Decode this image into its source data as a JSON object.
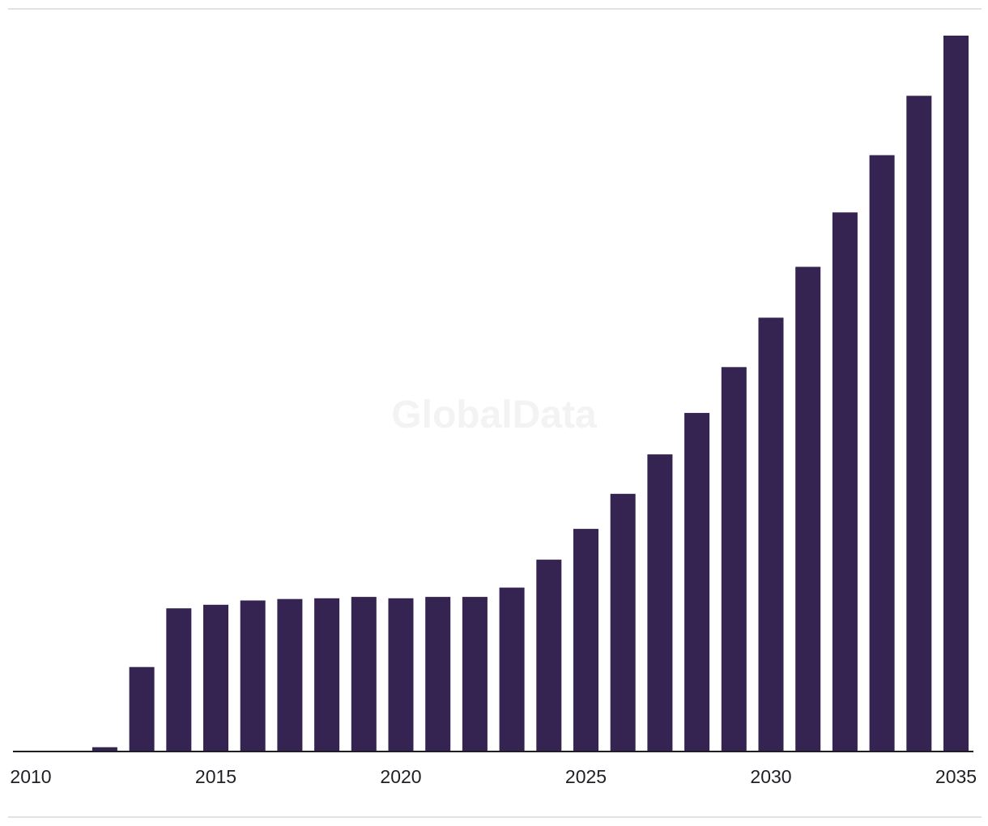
{
  "watermark": "GlobalData",
  "colors": {
    "bar": "#352352",
    "axis": "#1f1f26",
    "rule": "#e2e2e2"
  },
  "chart_data": {
    "type": "bar",
    "title": "",
    "xlabel": "",
    "ylabel": "",
    "x": [
      2010,
      2011,
      2012,
      2013,
      2014,
      2015,
      2016,
      2017,
      2018,
      2019,
      2020,
      2021,
      2022,
      2023,
      2024,
      2025,
      2026,
      2027,
      2028,
      2029,
      2030,
      2031,
      2032,
      2033,
      2034,
      2035
    ],
    "values": [
      0,
      0,
      0.6,
      11.8,
      20.0,
      20.5,
      21.1,
      21.3,
      21.4,
      21.6,
      21.4,
      21.6,
      21.6,
      22.9,
      26.8,
      31.1,
      36.0,
      41.5,
      47.3,
      53.7,
      60.6,
      67.7,
      75.3,
      83.3,
      91.6,
      100.0
    ],
    "xticks": [
      "2010",
      "2015",
      "2020",
      "2025",
      "2030",
      "2035"
    ],
    "ylim": [
      0,
      100
    ],
    "grid": false,
    "legend": "none"
  }
}
